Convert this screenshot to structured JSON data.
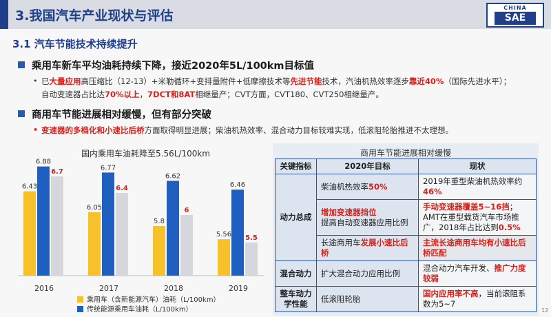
{
  "header": {
    "title": "3.我国汽车产业现状与评估",
    "logo_top": "CHINA",
    "logo_bottom": "SAE"
  },
  "section": {
    "title": "3.1 汽车节能技术持续提升"
  },
  "passenger": {
    "heading": "乘用车新车平均油耗持续下降，接近2020年5L/100km目标值",
    "line1": [
      "已",
      "大量应用",
      "高压缩比（12-13）+米勒循环+变排量附件+低摩擦技术等",
      "先进节能",
      "技术，汽油机热效率逐步",
      "靠近40%",
      "（国际先进水平）；"
    ],
    "line2": [
      "自动变速器占比达",
      "70%以上",
      "，",
      "7DCT和8AT",
      "相继量产；CVT方面，CVT180、CVT250相继量产。"
    ]
  },
  "commercial": {
    "heading": "商用车节能进展相对缓慢，但有部分突破",
    "line1": [
      "变速器的多档化和小速比后桥",
      "方面取得明显进展；柴油机热效率、混合动力目标较难实现，低滚阻轮胎推进不太理想。"
    ]
  },
  "chart_data": {
    "type": "bar",
    "title": "国内乘用车油耗降至5.56L/100km",
    "categories": [
      "2016",
      "2017",
      "2018",
      "2019"
    ],
    "series": [
      {
        "name": "乘用车（含新能源汽车）油耗（L/100km）",
        "color": "#f6c12a",
        "values": [
          6.43,
          6.05,
          5.8,
          5.56
        ]
      },
      {
        "name": "传统能源乘用车油耗（L/100km）",
        "color": "#1f5fbf",
        "values": [
          6.88,
          6.77,
          6.62,
          6.46
        ]
      },
      {
        "name": "",
        "color": "#d5d7dc",
        "values": [
          6.7,
          6.4,
          6,
          5.5
        ]
      }
    ],
    "value_labels": [
      [
        "6.43",
        "6.05",
        "5.8",
        "5.56"
      ],
      [
        "6.88",
        "6.77",
        "6.62",
        "6.46"
      ],
      [
        "6.7",
        "6.4",
        "6",
        "5.5"
      ]
    ],
    "legend_position": "bottom-left",
    "grid": false
  },
  "table": {
    "title": "商用车节能进展相对缓慢",
    "headers": [
      "关键指标",
      "2020年目标",
      "现状"
    ],
    "rows": {
      "power_key": "动力总成",
      "r1_target": [
        "柴油机热效率",
        "50%"
      ],
      "r1_status": [
        "2019年重型柴油机热效率约",
        "46%"
      ],
      "r2_target": [
        "增加变速器挡位",
        "提高自动变速器应用比例"
      ],
      "r2_status": [
        "手动变速器覆盖5~16挡",
        "；AMT在重型载货汽车市场推广，2018年占比达到",
        "0.5%"
      ],
      "r3_target": [
        "长途商用车",
        "发展小速比后桥"
      ],
      "r3_status": [
        "主流长途商用车均有小速比后桥匹配"
      ],
      "hybrid_key": "混合动力",
      "r4_target": "扩大混合动力应用比例",
      "r4_status": [
        "混合动力汽车开发、",
        "推广力度较弱"
      ],
      "vehicle_key": "整车动力学性能",
      "r5_target": "低滚阻轮胎",
      "r5_status": [
        "国内应用率不高",
        "，当前滚阻系数为5~7"
      ]
    }
  },
  "page_number": "12"
}
